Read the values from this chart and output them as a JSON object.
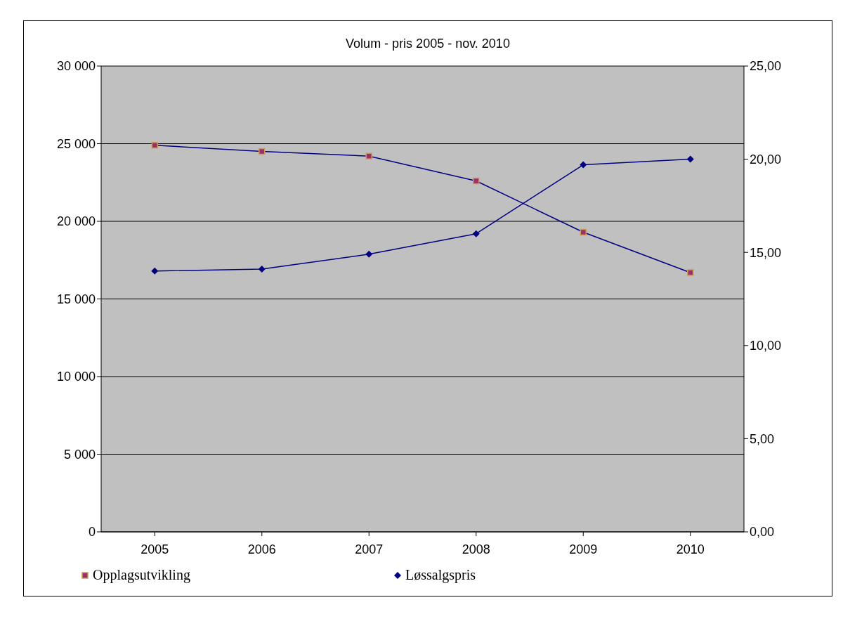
{
  "chart_data": {
    "type": "line",
    "title": "Volum - pris 2005 - nov. 2010",
    "categories": [
      "2005",
      "2006",
      "2007",
      "2008",
      "2009",
      "2010"
    ],
    "series": [
      {
        "name": "Opplagsutvikling",
        "color": "#000080",
        "marker": "square",
        "values": [
          24900,
          24500,
          24200,
          22600,
          19300,
          16700
        ]
      },
      {
        "name": "Løssalgspris",
        "color": "#000080",
        "marker": "diamond",
        "axis": "y2",
        "values": [
          14.0,
          14.1,
          14.9,
          16.0,
          19.7,
          20.0
        ]
      }
    ],
    "ylim": [
      0,
      30000
    ],
    "yticks": [
      {
        "value": 0,
        "label": "0"
      },
      {
        "value": 5000,
        "label": "5 000"
      },
      {
        "value": 10000,
        "label": "10 000"
      },
      {
        "value": 15000,
        "label": "15 000"
      },
      {
        "value": 20000,
        "label": "20 000"
      },
      {
        "value": 25000,
        "label": "25 000"
      },
      {
        "value": 30000,
        "label": "30 000"
      }
    ],
    "y2lim": [
      0,
      25
    ],
    "y2ticks": [
      {
        "value": 0,
        "label": "0,00"
      },
      {
        "value": 5,
        "label": "5,00"
      },
      {
        "value": 10,
        "label": "10,00"
      },
      {
        "value": 15,
        "label": "15,00"
      },
      {
        "value": 20,
        "label": "20,00"
      },
      {
        "value": 25,
        "label": "25,00"
      }
    ],
    "grid": "y",
    "legend": "bottom",
    "line_style": "solid"
  }
}
